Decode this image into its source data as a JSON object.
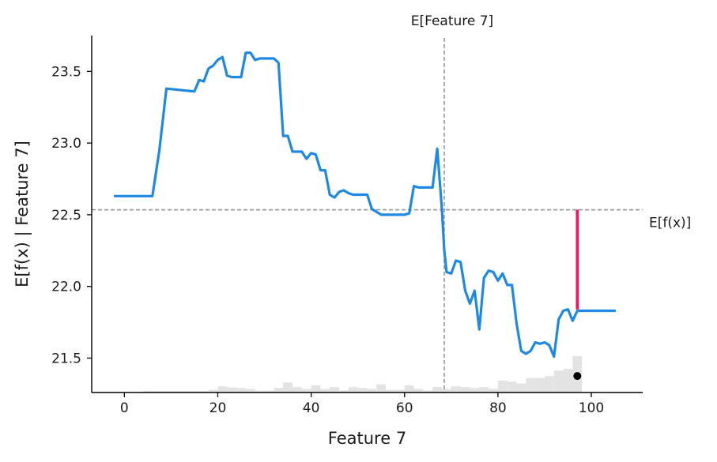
{
  "chart_data": {
    "type": "line",
    "title": "",
    "xlabel": "Feature 7",
    "ylabel": "E[f(x) | Feature 7]",
    "xlim": [
      -7,
      111
    ],
    "ylim": [
      21.26,
      23.75
    ],
    "xticks": [
      0,
      20,
      40,
      60,
      80,
      100
    ],
    "yticks": [
      21.5,
      22.0,
      22.5,
      23.0,
      23.5
    ],
    "grid": false,
    "colors": {
      "line": "#1e88e5",
      "highlight": "#ff0d57",
      "reference": "#999999",
      "histogram": "#e3e3e3",
      "point": "#000000"
    },
    "series": [
      {
        "x": [
          -2,
          3,
          6,
          7.5,
          9,
          15,
          16,
          17,
          18,
          19,
          20,
          21,
          22,
          23,
          25,
          26,
          27,
          28,
          29,
          30,
          32,
          33,
          34,
          35,
          36,
          38,
          39,
          40,
          41,
          42,
          43,
          44,
          45,
          46,
          47,
          48,
          49,
          50,
          52,
          53,
          55,
          56,
          58,
          59,
          60,
          61,
          62,
          63,
          64,
          65,
          66,
          67,
          68,
          68.5,
          69,
          70,
          71,
          72,
          73,
          74,
          75,
          76,
          77,
          78,
          79,
          80,
          81,
          82,
          83,
          84,
          85,
          86,
          87,
          88,
          89,
          90,
          91,
          92,
          93,
          94,
          95,
          96,
          97,
          98,
          99,
          100,
          101,
          102,
          103,
          104,
          105
        ],
        "y": [
          22.63,
          22.63,
          22.63,
          22.95,
          23.38,
          23.36,
          23.44,
          23.43,
          23.52,
          23.54,
          23.58,
          23.6,
          23.47,
          23.46,
          23.46,
          23.63,
          23.63,
          23.58,
          23.59,
          23.59,
          23.59,
          23.56,
          23.05,
          23.05,
          22.94,
          22.94,
          22.89,
          22.93,
          22.92,
          22.81,
          22.81,
          22.64,
          22.62,
          22.66,
          22.67,
          22.65,
          22.64,
          22.64,
          22.64,
          22.54,
          22.5,
          22.5,
          22.5,
          22.5,
          22.5,
          22.51,
          22.7,
          22.69,
          22.69,
          22.69,
          22.69,
          22.96,
          22.54,
          22.25,
          22.1,
          22.09,
          22.18,
          22.17,
          21.97,
          21.88,
          21.97,
          21.7,
          22.06,
          22.11,
          22.1,
          22.04,
          22.09,
          22.01,
          22.01,
          21.74,
          21.55,
          21.53,
          21.55,
          21.61,
          21.6,
          21.61,
          21.59,
          21.51,
          21.77,
          21.83,
          21.84,
          21.76,
          21.83,
          21.83,
          21.83,
          21.83,
          21.83,
          21.83,
          21.83,
          21.83,
          21.83
        ]
      }
    ],
    "expected_feature": {
      "label": "E[Feature 7]",
      "x": 68.5
    },
    "expected_value": {
      "label": "E[f(x)]",
      "y": 22.535
    },
    "highlight": {
      "x": 97,
      "y_from": 22.535,
      "y_to": 21.84,
      "point_y": 21.375
    },
    "histogram": {
      "bin_width": 2,
      "start": 4,
      "heights": [
        0.08,
        0.08,
        0.08,
        0.08,
        0.08,
        0.08,
        0.08,
        0.15,
        0.35,
        0.28,
        0.25,
        0.2,
        0.08,
        0.1,
        0.25,
        0.55,
        0.3,
        0.2,
        0.4,
        0.2,
        0.3,
        0.12,
        0.3,
        0.25,
        0.2,
        0.45,
        0.15,
        0.15,
        0.4,
        0.2,
        0.1,
        0.3,
        0.2,
        0.35,
        0.3,
        0.25,
        0.3,
        0.2,
        0.65,
        0.6,
        0.5,
        0.8,
        0.8,
        0.9,
        1.2,
        1.3,
        2.0,
        0.0
      ]
    }
  }
}
